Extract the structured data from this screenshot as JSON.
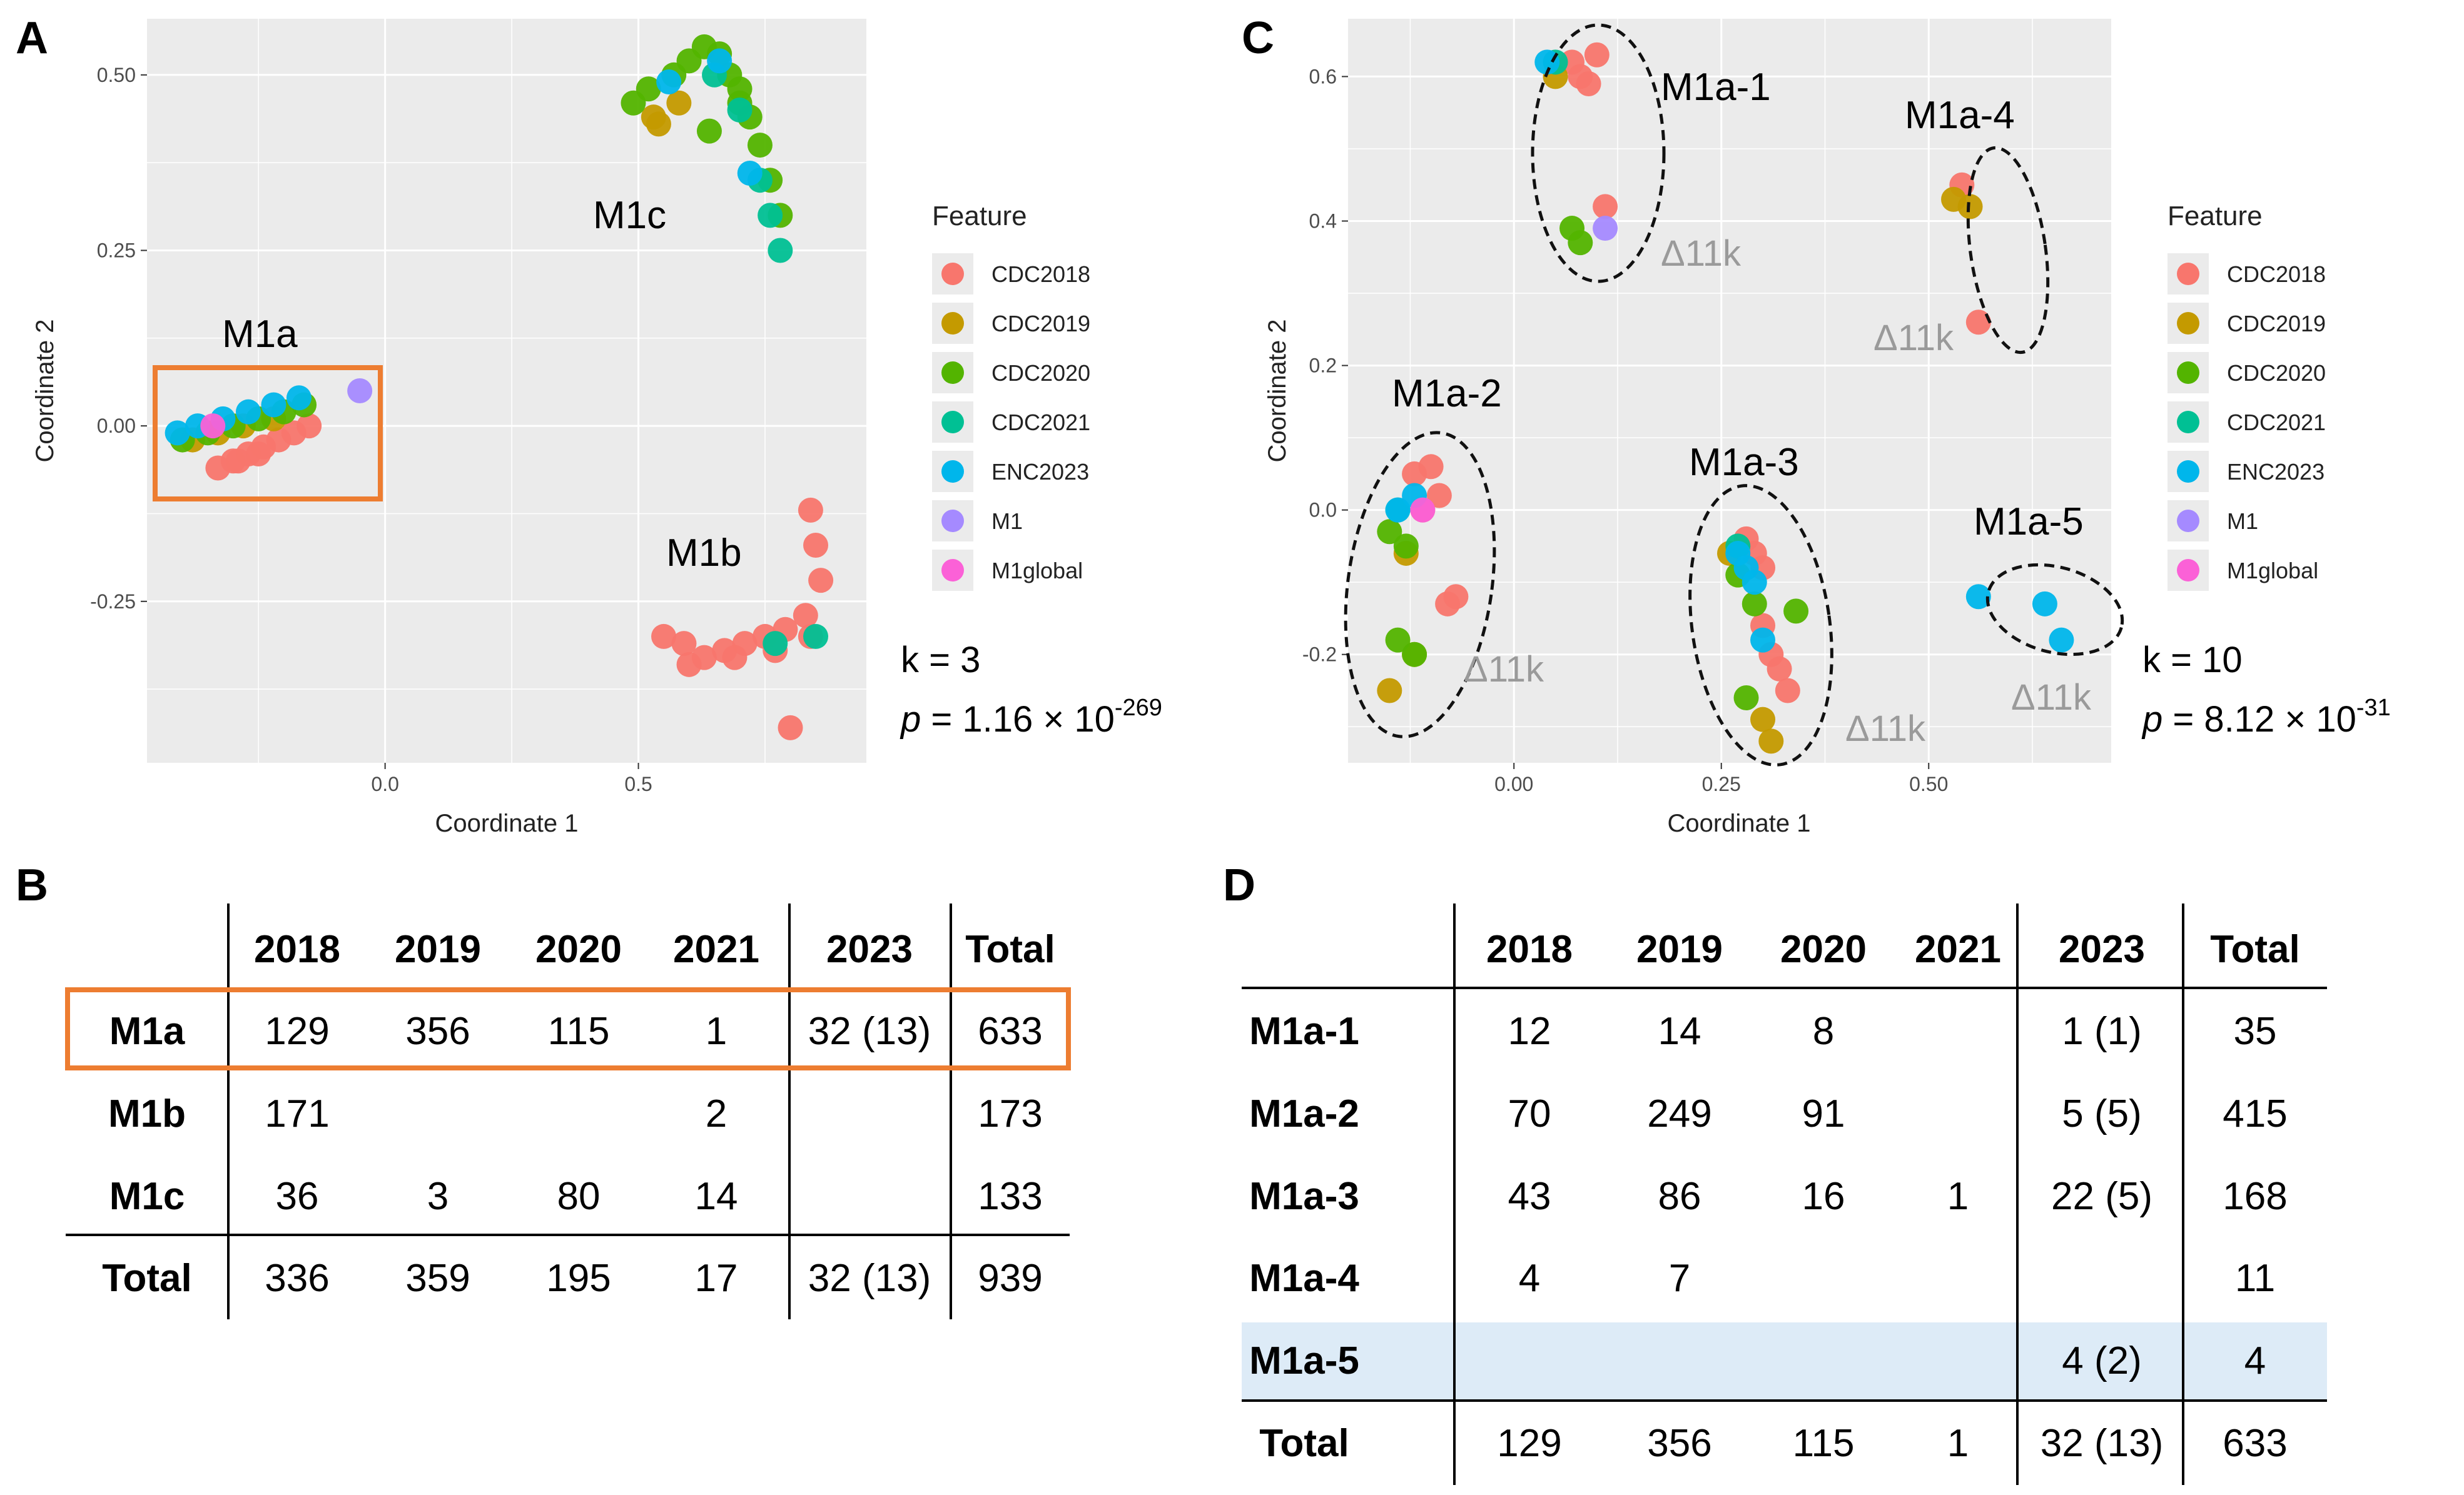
{
  "chart_data": [
    {
      "type": "scatter",
      "panel": "A",
      "xlabel": "Coordinate 1",
      "ylabel": "Coordinate 2",
      "xlim": [
        -0.47,
        0.95
      ],
      "ylim": [
        -0.48,
        0.58
      ],
      "xticks": [
        0.0,
        0.5
      ],
      "xtick_labels": [
        "0.0",
        "0.5"
      ],
      "yticks": [
        0.5,
        0.25,
        0.0,
        -0.25
      ],
      "ytick_labels": [
        "0.50",
        "0.25",
        "0.00",
        "-0.25"
      ],
      "grid": true,
      "legend_title": "Feature",
      "legend_position": "right",
      "series": [
        {
          "name": "CDC2018",
          "color": "#F8766D",
          "x": [
            -0.3,
            -0.27,
            -0.24,
            -0.21,
            -0.18,
            -0.15,
            -0.33,
            -0.29,
            -0.25,
            0.55,
            0.59,
            0.63,
            0.67,
            0.71,
            0.75,
            0.79,
            0.83,
            0.86,
            0.85,
            0.84,
            0.6,
            0.69,
            0.77,
            0.84,
            0.8
          ],
          "y": [
            -0.05,
            -0.04,
            -0.03,
            -0.02,
            -0.01,
            0.0,
            -0.06,
            -0.05,
            -0.04,
            -0.3,
            -0.31,
            -0.33,
            -0.32,
            -0.31,
            -0.3,
            -0.29,
            -0.27,
            -0.22,
            -0.17,
            -0.12,
            -0.34,
            -0.33,
            -0.32,
            -0.3,
            -0.43
          ]
        },
        {
          "name": "CDC2019",
          "color": "#C49A00",
          "x": [
            -0.38,
            -0.33,
            -0.28,
            -0.22,
            0.53,
            0.54,
            0.58
          ],
          "y": [
            -0.02,
            -0.01,
            0.0,
            0.01,
            0.44,
            0.43,
            0.46
          ]
        },
        {
          "name": "CDC2020",
          "color": "#53B400",
          "x": [
            -0.4,
            -0.35,
            -0.3,
            -0.25,
            -0.2,
            -0.16,
            0.49,
            0.52,
            0.57,
            0.6,
            0.63,
            0.66,
            0.68,
            0.7,
            0.72,
            0.74,
            0.76,
            0.78,
            0.64,
            0.7
          ],
          "y": [
            -0.02,
            -0.01,
            0.0,
            0.01,
            0.02,
            0.03,
            0.46,
            0.48,
            0.5,
            0.52,
            0.54,
            0.53,
            0.5,
            0.48,
            0.44,
            0.4,
            0.35,
            0.3,
            0.42,
            0.46
          ]
        },
        {
          "name": "CDC2021",
          "color": "#00C094",
          "x": [
            0.65,
            0.7,
            0.74,
            0.76,
            0.78,
            0.77,
            0.85
          ],
          "y": [
            0.5,
            0.45,
            0.35,
            0.3,
            0.25,
            -0.31,
            -0.3
          ]
        },
        {
          "name": "ENC2023",
          "color": "#00B6EB",
          "x": [
            -0.41,
            -0.37,
            -0.32,
            -0.27,
            -0.22,
            -0.17,
            0.56,
            0.66,
            0.72
          ],
          "y": [
            -0.01,
            0.0,
            0.01,
            0.02,
            0.03,
            0.04,
            0.49,
            0.52,
            0.36
          ]
        },
        {
          "name": "M1",
          "color": "#A58AFF",
          "x": [
            -0.05
          ],
          "y": [
            0.05
          ]
        },
        {
          "name": "M1global",
          "color": "#FB61D7",
          "x": [
            -0.34
          ],
          "y": [
            0.0
          ]
        }
      ],
      "annotations": [
        "M1a",
        "M1b",
        "M1c"
      ],
      "stat_k": "k = 3",
      "stat_p_prefix": "p",
      "stat_p_value": " = 1.16 × 10",
      "stat_p_exp": "-269"
    },
    {
      "type": "scatter",
      "panel": "C",
      "xlabel": "Coordinate 1",
      "ylabel": "Coordinate 2",
      "xlim": [
        -0.2,
        0.72
      ],
      "ylim": [
        -0.35,
        0.68
      ],
      "xticks": [
        0.0,
        0.25,
        0.5
      ],
      "xtick_labels": [
        "0.00",
        "0.25",
        "0.50"
      ],
      "yticks": [
        0.6,
        0.4,
        0.2,
        0.0,
        -0.2
      ],
      "ytick_labels": [
        "0.6",
        "0.4",
        "0.2",
        "0.0",
        "-0.2"
      ],
      "grid": true,
      "legend_title": "Feature",
      "legend_position": "right",
      "series": [
        {
          "name": "CDC2018",
          "color": "#F8766D",
          "x": [
            0.07,
            0.08,
            0.09,
            0.1,
            0.11,
            -0.12,
            -0.1,
            -0.09,
            -0.11,
            -0.08,
            -0.07,
            0.28,
            0.29,
            0.3,
            0.31,
            0.32,
            0.3,
            0.33,
            0.54,
            0.56
          ],
          "y": [
            0.62,
            0.6,
            0.59,
            0.63,
            0.42,
            0.05,
            0.06,
            0.02,
            0.0,
            -0.13,
            -0.12,
            -0.04,
            -0.06,
            -0.08,
            -0.2,
            -0.22,
            -0.16,
            -0.25,
            0.45,
            0.26
          ]
        },
        {
          "name": "CDC2019",
          "color": "#C49A00",
          "x": [
            0.05,
            0.53,
            0.55,
            -0.13,
            -0.15,
            -0.12,
            0.26,
            0.31,
            0.3
          ],
          "y": [
            0.6,
            0.43,
            0.42,
            -0.06,
            -0.25,
            -0.2,
            -0.06,
            -0.32,
            -0.29
          ]
        },
        {
          "name": "CDC2020",
          "color": "#53B400",
          "x": [
            0.07,
            0.08,
            -0.15,
            -0.13,
            -0.14,
            -0.12,
            0.27,
            0.29,
            0.34,
            0.28
          ],
          "y": [
            0.39,
            0.37,
            -0.03,
            -0.05,
            -0.18,
            -0.2,
            -0.09,
            -0.13,
            -0.14,
            -0.26
          ]
        },
        {
          "name": "CDC2021",
          "color": "#00C094",
          "x": [
            0.05,
            -0.14,
            0.27
          ],
          "y": [
            0.62,
            0.0,
            -0.05
          ]
        },
        {
          "name": "ENC2023",
          "color": "#00B6EB",
          "x": [
            0.04,
            -0.14,
            -0.12,
            0.27,
            0.28,
            0.29,
            0.3,
            0.56,
            0.64,
            0.66
          ],
          "y": [
            0.62,
            0.0,
            0.02,
            -0.06,
            -0.08,
            -0.1,
            -0.18,
            -0.12,
            -0.13,
            -0.18
          ]
        },
        {
          "name": "M1",
          "color": "#A58AFF",
          "x": [
            0.11
          ],
          "y": [
            0.39
          ]
        },
        {
          "name": "M1global",
          "color": "#FB61D7",
          "x": [
            -0.11
          ],
          "y": [
            0.0
          ]
        }
      ],
      "annotations": [
        "M1a-1",
        "M1a-2",
        "M1a-3",
        "M1a-4",
        "M1a-5"
      ],
      "delta_label": "Δ11k",
      "stat_k": "k = 10",
      "stat_p_prefix": "p",
      "stat_p_value": " = 8.12 × 10",
      "stat_p_exp": "-31"
    },
    {
      "type": "table",
      "panel": "B",
      "columns": [
        "",
        "2018",
        "2019",
        "2020",
        "2021",
        "2023",
        "Total"
      ],
      "rows": [
        {
          "label": "M1a",
          "cells": [
            "129",
            "356",
            "115",
            "1",
            "32 (13)",
            "633"
          ]
        },
        {
          "label": "M1b",
          "cells": [
            "171",
            "",
            "",
            "2",
            "",
            "173"
          ]
        },
        {
          "label": "M1c",
          "cells": [
            "36",
            "3",
            "80",
            "14",
            "",
            "133"
          ]
        },
        {
          "label": "Total",
          "cells": [
            "336",
            "359",
            "195",
            "17",
            "32 (13)",
            "939"
          ]
        }
      ]
    },
    {
      "type": "table",
      "panel": "D",
      "columns": [
        "",
        "2018",
        "2019",
        "2020",
        "2021",
        "2023",
        "Total"
      ],
      "rows": [
        {
          "label": "M1a-1",
          "cells": [
            "12",
            "14",
            "8",
            "",
            "1 (1)",
            "35"
          ]
        },
        {
          "label": "M1a-2",
          "cells": [
            "70",
            "249",
            "91",
            "",
            "5 (5)",
            "415"
          ]
        },
        {
          "label": "M1a-3",
          "cells": [
            "43",
            "86",
            "16",
            "1",
            "22 (5)",
            "168"
          ]
        },
        {
          "label": "M1a-4",
          "cells": [
            "4",
            "7",
            "",
            "",
            "",
            "11"
          ]
        },
        {
          "label": "M1a-5",
          "cells": [
            "",
            "",
            "",
            "",
            "4 (2)",
            "4"
          ]
        },
        {
          "label": "Total",
          "cells": [
            "129",
            "356",
            "115",
            "1",
            "32 (13)",
            "633"
          ]
        }
      ]
    }
  ],
  "panel_letters": {
    "a": "A",
    "b": "B",
    "c": "C",
    "d": "D"
  },
  "highlight_color": "#ED7D31",
  "row_highlight_color": "#DDEBF7"
}
